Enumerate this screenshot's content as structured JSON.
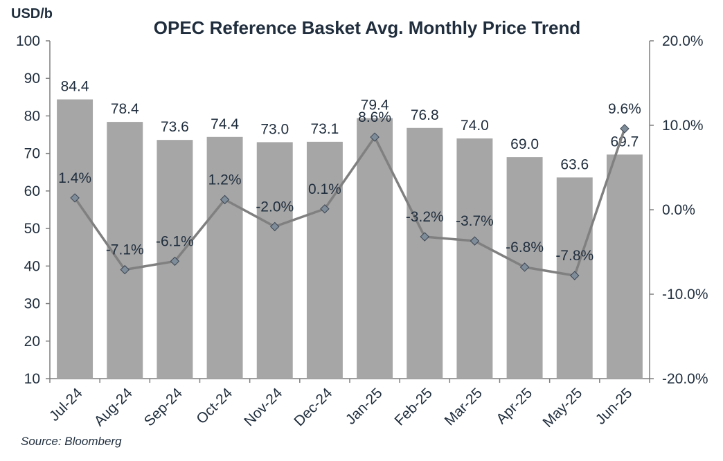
{
  "chart_data": {
    "type": "bar",
    "title": "OPEC Reference Basket Avg. Monthly Price Trend",
    "ylabel_left": "USD/b",
    "source": "Source: Bloomberg",
    "categories": [
      "Jul-24",
      "Aug-24",
      "Sep-24",
      "Oct-24",
      "Nov-24",
      "Dec-24",
      "Jan-25",
      "Feb-25",
      "Mar-25",
      "Apr-25",
      "May-25",
      "Jun-25"
    ],
    "series": [
      {
        "type": "bar",
        "axis": "left",
        "color": "#a6a6a6",
        "values": [
          84.4,
          78.4,
          73.6,
          74.4,
          73.0,
          73.1,
          79.4,
          76.8,
          74.0,
          69.0,
          63.6,
          69.7
        ],
        "labels": [
          "84.4",
          "78.4",
          "73.6",
          "74.4",
          "73.0",
          "73.1",
          "79.4",
          "76.8",
          "74.0",
          "69.0",
          "63.6",
          "69.7"
        ]
      },
      {
        "type": "line",
        "axis": "right",
        "color": "#808080",
        "marker_color": "#7f8c9a",
        "values": [
          1.4,
          -7.1,
          -6.1,
          1.2,
          -2.0,
          0.1,
          8.6,
          -3.2,
          -3.7,
          -6.8,
          -7.8,
          9.6
        ],
        "labels": [
          "1.4%",
          "-7.1%",
          "-6.1%",
          "1.2%",
          "-2.0%",
          "0.1%",
          "8.6%",
          "-3.2%",
          "-3.7%",
          "-6.8%",
          "-7.8%",
          "9.6%"
        ]
      }
    ],
    "y_left": {
      "ylim": [
        10,
        100
      ],
      "ticks": [
        10,
        20,
        30,
        40,
        50,
        60,
        70,
        80,
        90,
        100
      ],
      "tick_labels": [
        "10",
        "20",
        "30",
        "40",
        "50",
        "60",
        "70",
        "80",
        "90",
        "100"
      ]
    },
    "y_right": {
      "ylim": [
        -20,
        20
      ],
      "ticks": [
        -20,
        -10,
        0,
        10,
        20
      ],
      "tick_labels": [
        "-20.0%",
        "-10.0%",
        "0.0%",
        "10.0%",
        "20.0%"
      ]
    },
    "grid": false,
    "legend": "none"
  }
}
